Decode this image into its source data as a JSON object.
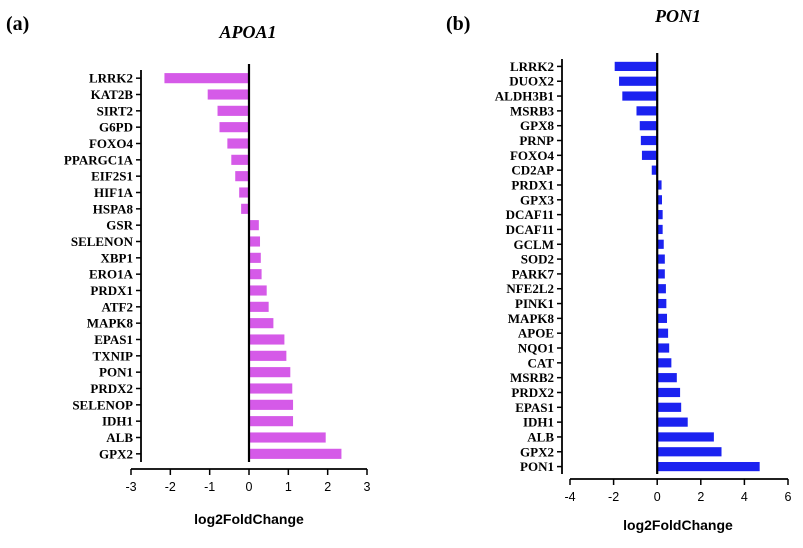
{
  "chart_data": [
    {
      "type": "bar",
      "orientation": "horizontal",
      "panel": "(a)",
      "title": "APOA1",
      "xlabel": "log2FoldChange",
      "ylabel": "",
      "xlim": [
        -3,
        3
      ],
      "xticks": [
        "-3",
        "-2",
        "-1",
        "0",
        "1",
        "2",
        "3"
      ],
      "grid": false,
      "color": "#d55ae8",
      "categories": [
        "LRRK2",
        "KAT2B",
        "SIRT2",
        "G6PD",
        "FOXO4",
        "PPARGC1A",
        "EIF2S1",
        "HIF1A",
        "HSPA8",
        "GSR",
        "SELENON",
        "XBP1",
        "ERO1A",
        "PRDX1",
        "ATF2",
        "MAPK8",
        "EPAS1",
        "TXNIP",
        "PON1",
        "PRDX2",
        "SELENOP",
        "IDH1",
        "ALB",
        "GPX2"
      ],
      "values": [
        -2.15,
        -1.05,
        -0.8,
        -0.75,
        -0.55,
        -0.45,
        -0.35,
        -0.25,
        -0.2,
        0.25,
        0.28,
        0.3,
        0.32,
        0.45,
        0.5,
        0.62,
        0.9,
        0.95,
        1.05,
        1.1,
        1.12,
        1.12,
        1.95,
        2.35
      ]
    },
    {
      "type": "bar",
      "orientation": "horizontal",
      "panel": "(b)",
      "title": "PON1",
      "xlabel": "log2FoldChange",
      "ylabel": "",
      "xlim": [
        -4,
        6
      ],
      "xticks": [
        "-4",
        "-2",
        "0",
        "2",
        "4",
        "6"
      ],
      "grid": false,
      "color": "#1b22f0",
      "categories": [
        "LRRK2",
        "DUOX2",
        "ALDH3B1",
        "MSRB3",
        "GPX8",
        "PRNP",
        "FOXO4",
        "CD2AP",
        "PRDX1",
        "GPX3",
        "DCAF11",
        "DCAF11",
        "GCLM",
        "SOD2",
        "PARK7",
        "NFE2L2",
        "PINK1",
        "MAPK8",
        "APOE",
        "NQO1",
        "CAT",
        "MSRB2",
        "PRDX2",
        "EPAS1",
        "IDH1",
        "ALB",
        "GPX2",
        "PON1"
      ],
      "values": [
        -1.95,
        -1.75,
        -1.6,
        -0.95,
        -0.8,
        -0.75,
        -0.7,
        -0.25,
        0.2,
        0.22,
        0.25,
        0.25,
        0.3,
        0.35,
        0.35,
        0.4,
        0.42,
        0.45,
        0.5,
        0.55,
        0.65,
        0.9,
        1.05,
        1.1,
        1.4,
        2.6,
        2.95,
        4.7
      ]
    }
  ]
}
